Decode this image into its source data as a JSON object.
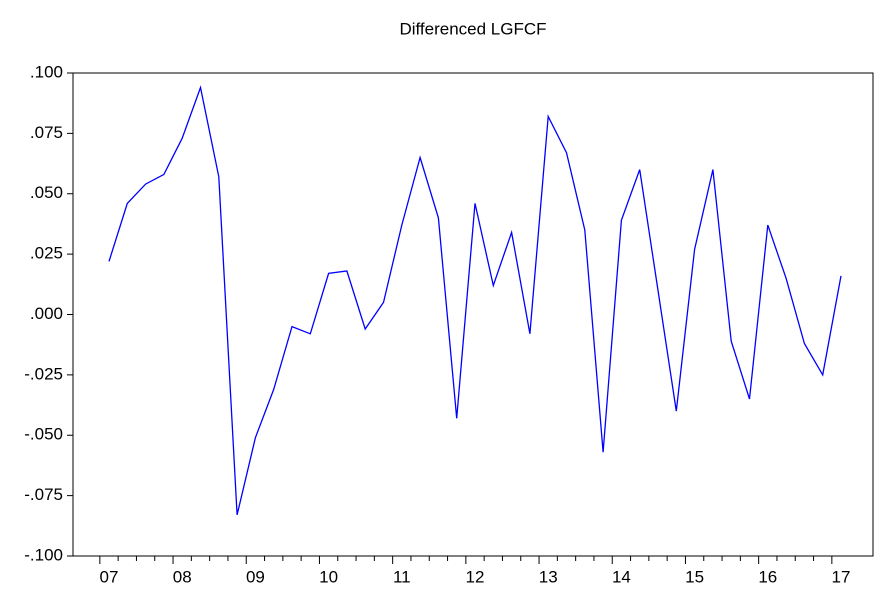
{
  "chart_data": {
    "type": "line",
    "title": "Differenced LGFCF",
    "categories": [
      "07",
      null,
      null,
      null,
      "08",
      null,
      null,
      null,
      "09",
      null,
      null,
      null,
      "10",
      null,
      null,
      null,
      "11",
      null,
      null,
      null,
      "12",
      null,
      null,
      null,
      "13",
      null,
      null,
      null,
      "14",
      null,
      null,
      null,
      "15",
      null,
      null,
      null,
      "16",
      null,
      null,
      null,
      "17"
    ],
    "values": [
      0.022,
      0.046,
      0.054,
      0.058,
      0.073,
      0.094,
      0.057,
      -0.083,
      -0.051,
      -0.031,
      -0.005,
      -0.008,
      0.017,
      0.018,
      -0.006,
      0.005,
      0.037,
      0.065,
      0.04,
      -0.043,
      0.046,
      0.012,
      0.034,
      -0.008,
      0.082,
      0.067,
      0.035,
      -0.057,
      0.039,
      0.06,
      0.01,
      -0.04,
      0.027,
      0.06,
      -0.011,
      -0.035,
      0.037,
      0.015,
      -0.012,
      -0.025,
      0.016
    ],
    "color": "#0000ff",
    "ylim": [
      -0.1,
      0.1
    ],
    "yticks": [
      {
        "value": -0.1,
        "label": "-.100"
      },
      {
        "value": -0.075,
        "label": "-.075"
      },
      {
        "value": -0.05,
        "label": "-.050"
      },
      {
        "value": -0.025,
        "label": "-.025"
      },
      {
        "value": 0,
        "label": ".000"
      },
      {
        "value": 0.025,
        "label": ".025"
      },
      {
        "value": 0.05,
        "label": ".050"
      },
      {
        "value": 0.075,
        "label": ".075"
      },
      {
        "value": 0.1,
        "label": ".100"
      }
    ],
    "grid": false
  }
}
